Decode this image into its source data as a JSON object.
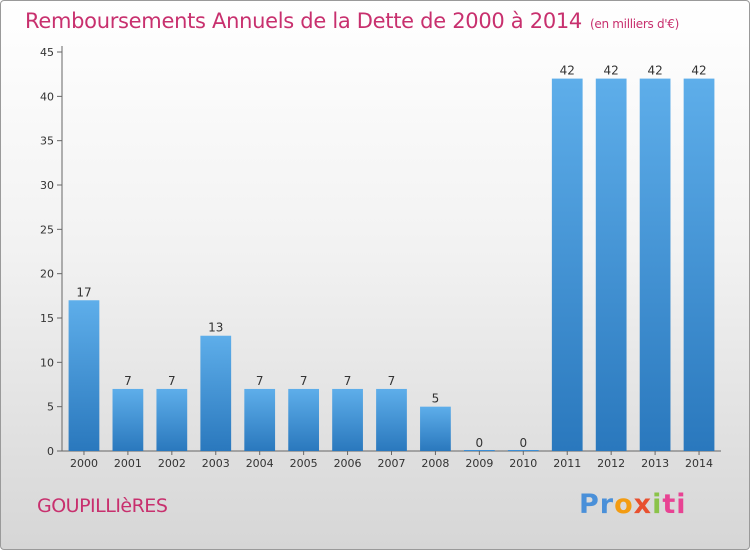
{
  "chart_data": {
    "type": "bar",
    "title": "Remboursements Annuels de la Dette de 2000 à 2014",
    "subtitle": "(en milliers d'€)",
    "categories": [
      "2000",
      "2001",
      "2002",
      "2003",
      "2004",
      "2005",
      "2006",
      "2007",
      "2008",
      "2009",
      "2010",
      "2011",
      "2012",
      "2013",
      "2014"
    ],
    "values": [
      17,
      7,
      7,
      13,
      7,
      7,
      7,
      7,
      5,
      0,
      0,
      42,
      42,
      42,
      42
    ],
    "ylim": [
      0,
      45
    ],
    "yticks": [
      0,
      5,
      10,
      15,
      20,
      25,
      30,
      35,
      40,
      45
    ],
    "xlabel": "",
    "ylabel": "",
    "grid": false,
    "bar_color": "#3d8fd6"
  },
  "footer": {
    "place": "GOUPILLIèRES",
    "logo": [
      "Pr",
      "o",
      "x",
      "i",
      "ti"
    ]
  }
}
